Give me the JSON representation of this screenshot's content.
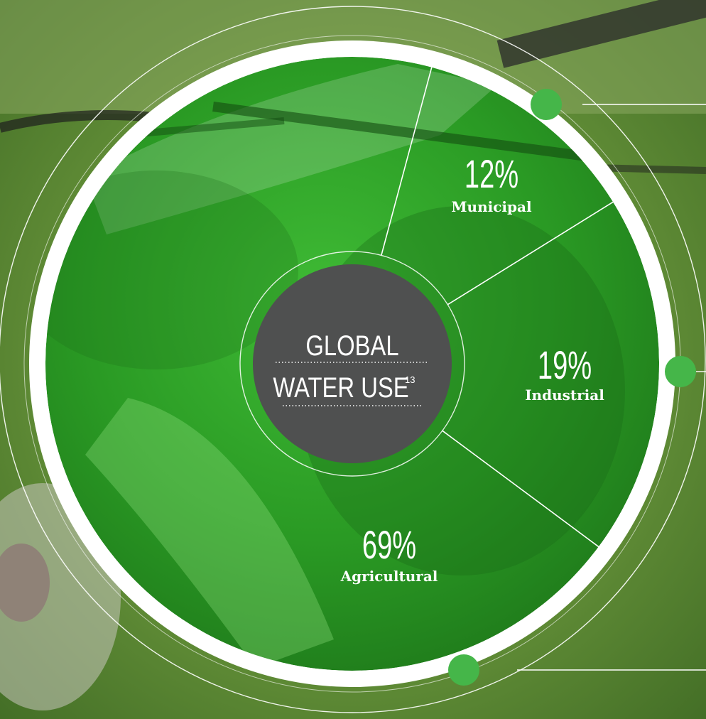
{
  "colors": {
    "overlay_green": "#2fae2a",
    "ring": "#ffffff",
    "center_disc": "#4f5050",
    "dot": "#45b649",
    "label_text": "#ffffff"
  },
  "center": {
    "line1": "GLOBAL",
    "line2": "WATER USE",
    "footnote": "13"
  },
  "chart_data": {
    "type": "pie",
    "title": "GLOBAL WATER USE",
    "title_footnote": "13",
    "slices": [
      {
        "label": "Municipal",
        "value": 12,
        "display": "12%"
      },
      {
        "label": "Industrial",
        "value": 19,
        "display": "19%"
      },
      {
        "label": "Agricultural",
        "value": 69,
        "display": "69%"
      }
    ]
  }
}
